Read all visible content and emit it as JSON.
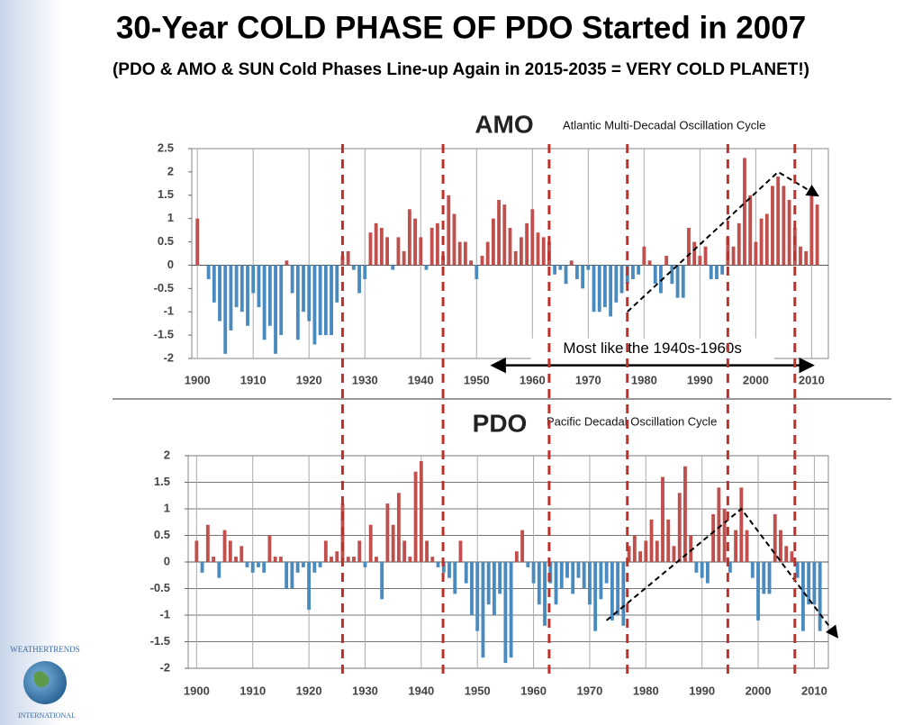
{
  "title": "30-Year COLD PHASE OF PDO Started in 2007",
  "subtitle": "(PDO & AMO & SUN Cold Phases Line-up Again in 2015-2035 = VERY COLD PLANET!)",
  "phase_lines": [
    1926,
    1944,
    1963,
    1977,
    1995,
    2007
  ],
  "logo": {
    "top": "WEATHERTRENDS",
    "bottom": "INTERNATIONAL"
  },
  "chart_data": [
    {
      "type": "bar",
      "title": "AMO",
      "subtitle": "Atlantic Multi-Decadal Oscillation Cycle",
      "positive_color": "#c0504d",
      "negative_color": "#4a8bbf",
      "grid": "x",
      "xlim": [
        1899,
        2013
      ],
      "xticks": [
        1900,
        1910,
        1920,
        1930,
        1940,
        1950,
        1960,
        1970,
        1980,
        1990,
        2000,
        2010
      ],
      "ylim": [
        -2,
        2.5
      ],
      "yticks": [
        -2,
        -1.5,
        -1,
        -0.5,
        0,
        0.5,
        1,
        1.5,
        2,
        2.5
      ],
      "x": [
        1900,
        1901,
        1902,
        1903,
        1904,
        1905,
        1906,
        1907,
        1908,
        1909,
        1910,
        1911,
        1912,
        1913,
        1914,
        1915,
        1916,
        1917,
        1918,
        1919,
        1920,
        1921,
        1922,
        1923,
        1924,
        1925,
        1926,
        1927,
        1928,
        1929,
        1930,
        1931,
        1932,
        1933,
        1934,
        1935,
        1936,
        1937,
        1938,
        1939,
        1940,
        1941,
        1942,
        1943,
        1944,
        1945,
        1946,
        1947,
        1948,
        1949,
        1950,
        1951,
        1952,
        1953,
        1954,
        1955,
        1956,
        1957,
        1958,
        1959,
        1960,
        1961,
        1962,
        1963,
        1964,
        1965,
        1966,
        1967,
        1968,
        1969,
        1970,
        1971,
        1972,
        1973,
        1974,
        1975,
        1976,
        1977,
        1978,
        1979,
        1980,
        1981,
        1982,
        1983,
        1984,
        1985,
        1986,
        1987,
        1988,
        1989,
        1990,
        1991,
        1992,
        1993,
        1994,
        1995,
        1996,
        1997,
        1998,
        1999,
        2000,
        2001,
        2002,
        2003,
        2004,
        2005,
        2006,
        2007,
        2008,
        2009,
        2010,
        2011
      ],
      "values": [
        1.0,
        0,
        -0.3,
        -0.8,
        -1.2,
        -1.9,
        -1.4,
        -0.9,
        -1.0,
        -1.3,
        -0.6,
        -0.9,
        -1.6,
        -1.3,
        -1.9,
        -1.5,
        0.1,
        -0.6,
        -1.6,
        -1.0,
        -1.2,
        -1.7,
        -1.5,
        -1.5,
        -1.5,
        -0.8,
        0.2,
        0.3,
        -0.1,
        -0.6,
        -0.3,
        0.7,
        0.9,
        0.8,
        0.6,
        -0.1,
        0.6,
        0.3,
        1.2,
        1.0,
        0.6,
        -0.1,
        0.8,
        0.9,
        0.2,
        1.5,
        1.1,
        0.5,
        0.5,
        0.1,
        -0.3,
        0.2,
        0.5,
        1.0,
        1.4,
        1.3,
        0.8,
        0.3,
        0.6,
        0.9,
        1.2,
        0.7,
        0.6,
        0.5,
        -0.2,
        -0.1,
        -0.4,
        0.1,
        -0.3,
        -0.5,
        -0.1,
        -1.0,
        -1.0,
        -0.9,
        -1.1,
        -0.8,
        -0.6,
        -0.4,
        -0.3,
        -0.2,
        0.4,
        0.1,
        -0.4,
        -0.6,
        0.2,
        -0.4,
        -0.7,
        -0.7,
        0.8,
        0.5,
        0.2,
        0.4,
        -0.3,
        -0.3,
        -0.2,
        0.6,
        0.4,
        0.9,
        2.3,
        1.5,
        0.5,
        1.0,
        1.1,
        1.7,
        1.9,
        1.7,
        1.4,
        0.8,
        0.4,
        0.3,
        1.5,
        1.3
      ],
      "trend_arrow": {
        "x": [
          1977,
          2004,
          2011
        ],
        "y": [
          -1,
          2,
          1.5
        ]
      },
      "span_annotation": {
        "text": "Most like the 1940s-1960s",
        "x": [
          1953,
          2010
        ],
        "y": -1.8
      }
    },
    {
      "type": "bar",
      "title": "PDO",
      "subtitle": "Pacific Decadal Oscillation Cycle",
      "positive_color": "#c0504d",
      "negative_color": "#4a8bbf",
      "grid": "both",
      "xlim": [
        1898.5,
        2012.5
      ],
      "xticks": [
        1900,
        1910,
        1920,
        1930,
        1940,
        1950,
        1960,
        1970,
        1980,
        1990,
        2000,
        2010
      ],
      "ylim": [
        -2,
        2
      ],
      "yticks": [
        -2,
        -1.5,
        -1,
        -0.5,
        0,
        0.5,
        1,
        1.5,
        2
      ],
      "x": [
        1900,
        1901,
        1902,
        1903,
        1904,
        1905,
        1906,
        1907,
        1908,
        1909,
        1910,
        1911,
        1912,
        1913,
        1914,
        1915,
        1916,
        1917,
        1918,
        1919,
        1920,
        1921,
        1922,
        1923,
        1924,
        1925,
        1926,
        1927,
        1928,
        1929,
        1930,
        1931,
        1932,
        1933,
        1934,
        1935,
        1936,
        1937,
        1938,
        1939,
        1940,
        1941,
        1942,
        1943,
        1944,
        1945,
        1946,
        1947,
        1948,
        1949,
        1950,
        1951,
        1952,
        1953,
        1954,
        1955,
        1956,
        1957,
        1958,
        1959,
        1960,
        1961,
        1962,
        1963,
        1964,
        1965,
        1966,
        1967,
        1968,
        1969,
        1970,
        1971,
        1972,
        1973,
        1974,
        1975,
        1976,
        1977,
        1978,
        1979,
        1980,
        1981,
        1982,
        1983,
        1984,
        1985,
        1986,
        1987,
        1988,
        1989,
        1990,
        1991,
        1992,
        1993,
        1994,
        1995,
        1996,
        1997,
        1998,
        1999,
        2000,
        2001,
        2002,
        2003,
        2004,
        2005,
        2006,
        2007,
        2008,
        2009,
        2010,
        2011
      ],
      "values": [
        0.4,
        -0.2,
        0.7,
        0.1,
        -0.3,
        0.6,
        0.4,
        0.1,
        0.3,
        -0.1,
        -0.2,
        -0.1,
        -0.2,
        0.5,
        0.1,
        0.1,
        -0.5,
        -0.5,
        -0.2,
        -0.1,
        -0.9,
        -0.2,
        -0.1,
        0.4,
        0.1,
        0.2,
        1.1,
        0.1,
        0.1,
        0.4,
        -0.1,
        0.7,
        0.1,
        -0.7,
        1.1,
        0.7,
        1.3,
        0.4,
        0.1,
        1.7,
        1.9,
        0.4,
        0.1,
        -0.1,
        -0.2,
        -0.3,
        -0.6,
        0.4,
        -0.4,
        -1.0,
        -1.3,
        -1.8,
        -0.8,
        -1.0,
        -0.6,
        -1.9,
        -1.8,
        0.2,
        0.6,
        -0.1,
        -0.4,
        -0.8,
        -1.2,
        -0.4,
        -0.8,
        -0.5,
        -0.3,
        -0.6,
        -0.3,
        -0.5,
        -0.8,
        -1.3,
        -0.7,
        -0.4,
        -1.1,
        -1.0,
        -1.2,
        0.3,
        0.5,
        0.2,
        0.4,
        0.8,
        0.4,
        1.6,
        0.8,
        0.3,
        1.3,
        1.8,
        0.5,
        -0.2,
        -0.3,
        -0.4,
        0.9,
        1.4,
        1.0,
        -0.2,
        0.6,
        1.4,
        0.6,
        -0.3,
        -1.1,
        -0.6,
        -0.6,
        0.9,
        0.6,
        0.3,
        0.2,
        -0.3,
        -1.3,
        -0.8,
        -0.8,
        -1.3
      ],
      "trend_arrow": {
        "x": [
          1973,
          1997,
          2014
        ],
        "y": [
          -1.1,
          1.0,
          -1.4
        ]
      }
    }
  ]
}
